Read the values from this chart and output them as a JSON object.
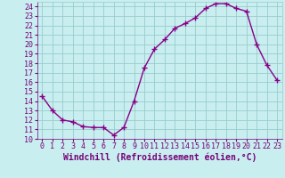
{
  "x": [
    0,
    1,
    2,
    3,
    4,
    5,
    6,
    7,
    8,
    9,
    10,
    11,
    12,
    13,
    14,
    15,
    16,
    17,
    18,
    19,
    20,
    21,
    22,
    23
  ],
  "y": [
    14.5,
    13.0,
    12.0,
    11.8,
    11.3,
    11.2,
    11.2,
    10.4,
    11.2,
    14.0,
    17.5,
    19.5,
    20.5,
    21.7,
    22.2,
    22.8,
    23.8,
    24.3,
    24.3,
    23.8,
    23.5,
    20.0,
    17.8,
    16.2
  ],
  "line_color": "#880088",
  "marker": "+",
  "marker_size": 4,
  "xlabel": "Windchill (Refroidissement éolien,°C)",
  "xlim": [
    -0.5,
    23.5
  ],
  "ylim": [
    10,
    24.5
  ],
  "yticks": [
    10,
    11,
    12,
    13,
    14,
    15,
    16,
    17,
    18,
    19,
    20,
    21,
    22,
    23,
    24
  ],
  "xticks": [
    0,
    1,
    2,
    3,
    4,
    5,
    6,
    7,
    8,
    9,
    10,
    11,
    12,
    13,
    14,
    15,
    16,
    17,
    18,
    19,
    20,
    21,
    22,
    23
  ],
  "bg_color": "#c8eef0",
  "grid_color": "#99cccc",
  "font_color": "#770077",
  "label_fontsize": 7,
  "tick_fontsize": 6
}
